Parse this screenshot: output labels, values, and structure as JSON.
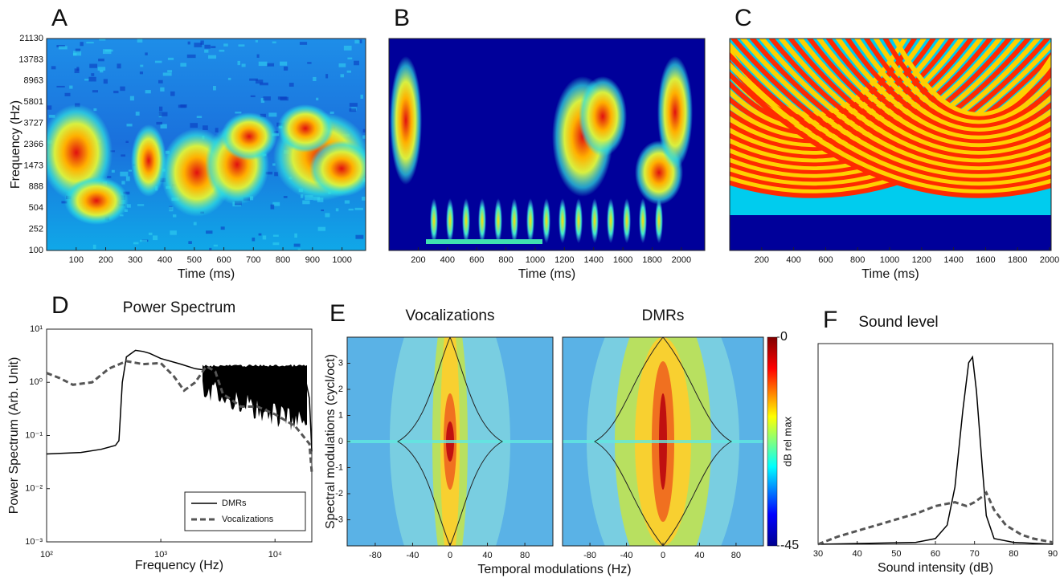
{
  "chart_data": [
    {
      "type": "spectrogram",
      "panel": "A",
      "xlabel": "Time (ms)",
      "ylabel": "Frequency (Hz)",
      "xlim": [
        0,
        1080
      ],
      "xticks": [
        100,
        200,
        300,
        400,
        500,
        600,
        700,
        800,
        900,
        1000
      ],
      "ytick_labels": [
        100,
        252,
        504,
        888,
        1473,
        2366,
        3727,
        5801,
        8963,
        13783,
        21130
      ]
    },
    {
      "type": "spectrogram",
      "panel": "B",
      "xlabel": "Time (ms)",
      "xlim": [
        0,
        2160
      ],
      "xticks": [
        200,
        400,
        600,
        800,
        1000,
        1200,
        1400,
        1600,
        1800,
        2000
      ]
    },
    {
      "type": "spectrogram",
      "panel": "C",
      "xlabel": "Time (ms)",
      "xlim": [
        0,
        2010
      ],
      "xticks": [
        200,
        400,
        600,
        800,
        1000,
        1200,
        1400,
        1600,
        1800,
        2000
      ]
    },
    {
      "type": "line",
      "panel": "D",
      "title": "Power Spectrum",
      "xlabel": "Frequency (Hz)",
      "ylabel": "Power Spectrum (Arb. Unit)",
      "xscale": "log",
      "yscale": "log",
      "xlim": [
        100,
        21000
      ],
      "ylim": [
        0.001,
        10
      ],
      "xticks": [
        {
          "value": 100,
          "label": "10²"
        },
        {
          "value": 1000,
          "label": "10³"
        },
        {
          "value": 10000,
          "label": "10⁴"
        }
      ],
      "yticks": [
        {
          "value": 0.001,
          "label": "10⁻³"
        },
        {
          "value": 0.01,
          "label": "10⁻²"
        },
        {
          "value": 0.1,
          "label": "10⁻¹"
        },
        {
          "value": 1,
          "label": "10⁰"
        },
        {
          "value": 10,
          "label": "10¹"
        }
      ],
      "legend": "lower right",
      "series": [
        {
          "name": "DMRs",
          "color": "#000000",
          "dashed": false,
          "x": [
            100,
            200,
            300,
            400,
            430,
            460,
            500,
            600,
            700,
            800,
            1000,
            1500,
            2000,
            3000,
            5000,
            10000,
            15000,
            18000,
            20000,
            21000
          ],
          "values": [
            0.045,
            0.048,
            0.055,
            0.065,
            0.08,
            1.0,
            3.0,
            4.0,
            3.8,
            3.5,
            2.8,
            2.2,
            1.8,
            1.6,
            1.6,
            1.6,
            1.6,
            1.5,
            0.5,
            0.05
          ]
        },
        {
          "name": "Vocalizations",
          "color": "#555555",
          "dashed": true,
          "x": [
            100,
            130,
            170,
            250,
            350,
            500,
            700,
            1000,
            1300,
            1600,
            2000,
            2500,
            3000,
            3500,
            4000,
            5000,
            7000,
            10000,
            15000,
            20000,
            21000
          ],
          "values": [
            1.5,
            1.2,
            0.9,
            1.0,
            1.8,
            2.5,
            2.2,
            2.3,
            1.3,
            0.7,
            1.0,
            2.0,
            1.6,
            0.6,
            0.5,
            0.35,
            0.35,
            0.25,
            0.15,
            0.07,
            0.02
          ]
        }
      ]
    },
    {
      "type": "modulation",
      "panel": "E",
      "title": "Vocalizations",
      "xlabel": "Temporal modulations (Hz)",
      "ylabel": "Spectral modulations (cycl/oct)",
      "xlim": [
        -110,
        110
      ],
      "ylim": [
        -4,
        4
      ],
      "xticks": [
        -80,
        -40,
        0,
        40,
        80
      ],
      "yticks": [
        -3,
        -2,
        -1,
        0,
        1,
        2,
        3
      ]
    },
    {
      "type": "modulation",
      "title": "DMRs",
      "xlim": [
        -110,
        110
      ],
      "ylim": [
        -4,
        4
      ],
      "xticks": [
        -80,
        -40,
        0,
        40,
        80
      ],
      "colorbar": {
        "label": "dB rel max",
        "lim": [
          -45,
          0
        ],
        "ticks": [
          0,
          -45
        ]
      }
    },
    {
      "type": "line",
      "panel": "F",
      "title": "Sound level",
      "xlabel": "Sound intensity (dB)",
      "xlim": [
        30,
        90
      ],
      "ylim": [
        0,
        1.05
      ],
      "xticks": [
        30,
        40,
        50,
        60,
        70,
        80,
        90
      ],
      "series": [
        {
          "name": "DMRs",
          "color": "#000000",
          "dashed": false,
          "x": [
            30,
            55,
            60,
            63,
            65,
            67,
            68.5,
            69.5,
            70.5,
            72,
            73,
            75,
            80,
            90
          ],
          "values": [
            0,
            0.01,
            0.03,
            0.1,
            0.3,
            0.7,
            0.95,
            0.98,
            0.8,
            0.4,
            0.15,
            0.03,
            0.01,
            0
          ]
        },
        {
          "name": "Vocalizations",
          "color": "#555555",
          "dashed": true,
          "x": [
            30,
            35,
            40,
            45,
            50,
            55,
            60,
            65,
            68,
            70,
            72,
            73,
            75,
            78,
            82,
            85,
            90
          ],
          "values": [
            0,
            0.04,
            0.07,
            0.1,
            0.13,
            0.16,
            0.2,
            0.22,
            0.2,
            0.22,
            0.25,
            0.27,
            0.18,
            0.1,
            0.05,
            0.03,
            0.01
          ]
        }
      ]
    }
  ]
}
